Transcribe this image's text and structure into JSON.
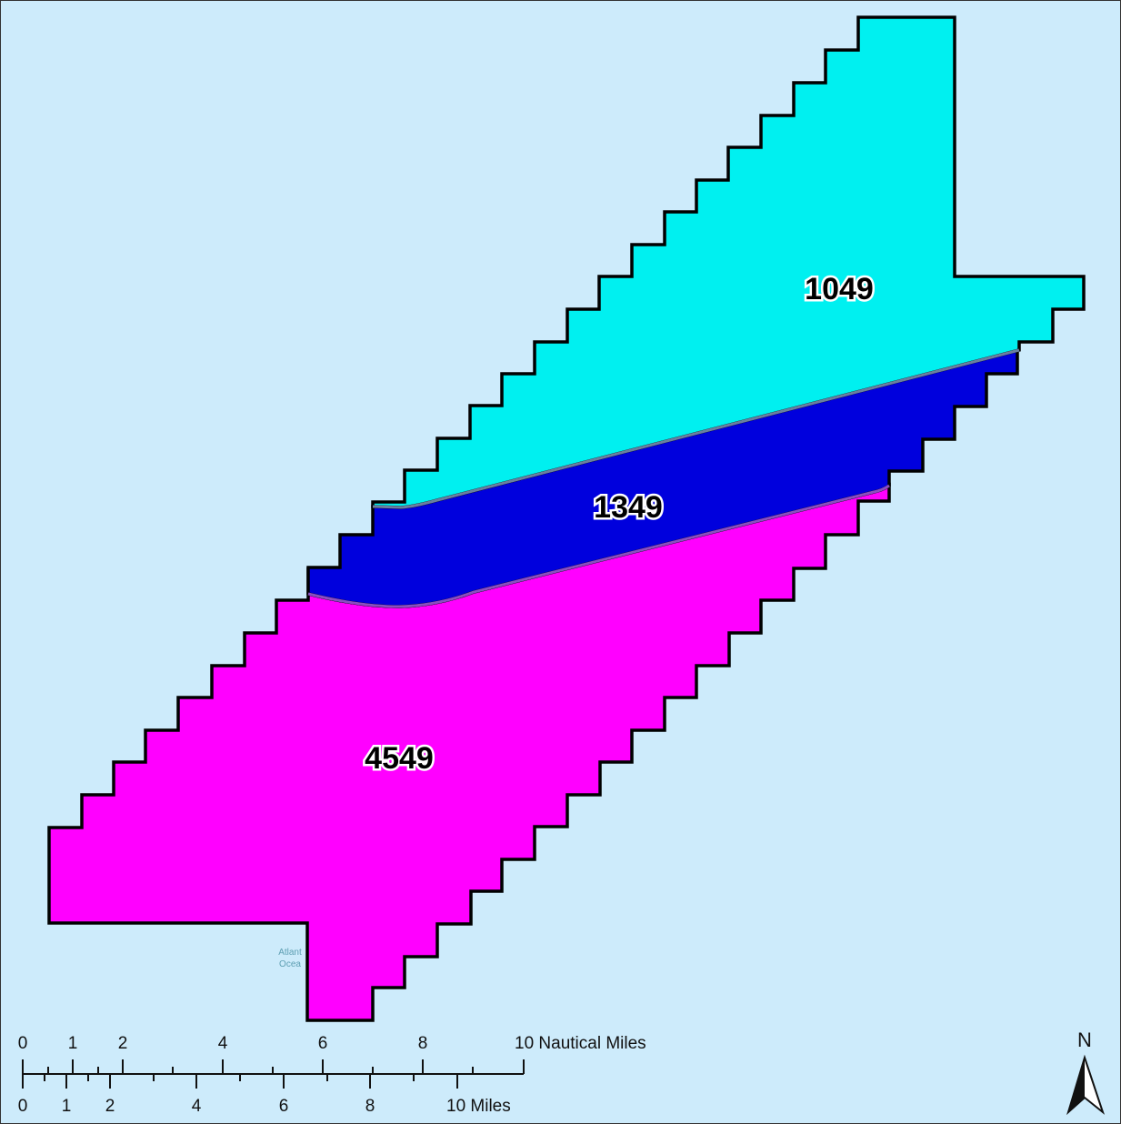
{
  "zones": [
    {
      "id": "1049",
      "label": "1049",
      "color": "#00f0f0"
    },
    {
      "id": "1349",
      "label": "1349",
      "color": "#0000dd"
    },
    {
      "id": "4549",
      "label": "4549",
      "color": "#ff00ff"
    }
  ],
  "basemap": {
    "water_color": "#cdebfb",
    "ocean_label_line1": "Atlant",
    "ocean_label_line2": "Ocea"
  },
  "scale_bar": {
    "nautical_ticks": [
      "0",
      "1",
      "2",
      "4",
      "6",
      "8"
    ],
    "nautical_end_label": "10 Nautical Miles",
    "statute_ticks": [
      "0",
      "1",
      "2",
      "4",
      "6",
      "8"
    ],
    "statute_end_label": "10 Miles"
  },
  "north_arrow": {
    "letter": "N"
  }
}
